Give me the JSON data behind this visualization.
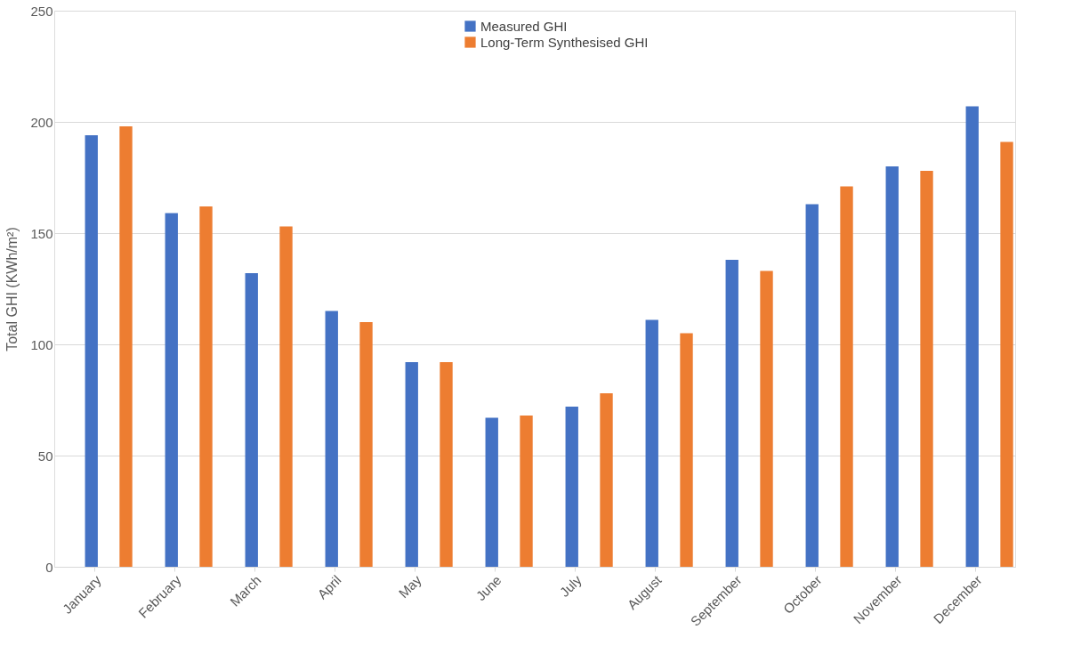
{
  "chart_data": {
    "type": "bar",
    "ylabel": "Total GHI (KWh/m²)",
    "categories": [
      "January",
      "February",
      "March",
      "April",
      "May",
      "June",
      "July",
      "August",
      "September",
      "October",
      "November",
      "December"
    ],
    "series": [
      {
        "name": "Measured GHI",
        "color": "#4472c4",
        "values": [
          194,
          159,
          132,
          115,
          92,
          67,
          72,
          111,
          138,
          163,
          180,
          207
        ]
      },
      {
        "name": "Long-Term Synthesised GHI",
        "color": "#ed7d31",
        "values": [
          198,
          162,
          153,
          110,
          92,
          68,
          78,
          105,
          133,
          171,
          178,
          191
        ]
      }
    ],
    "ylim": [
      0,
      250
    ],
    "yticks": [
      0,
      50,
      100,
      150,
      200,
      250
    ],
    "grid": "y",
    "legend": "top"
  }
}
